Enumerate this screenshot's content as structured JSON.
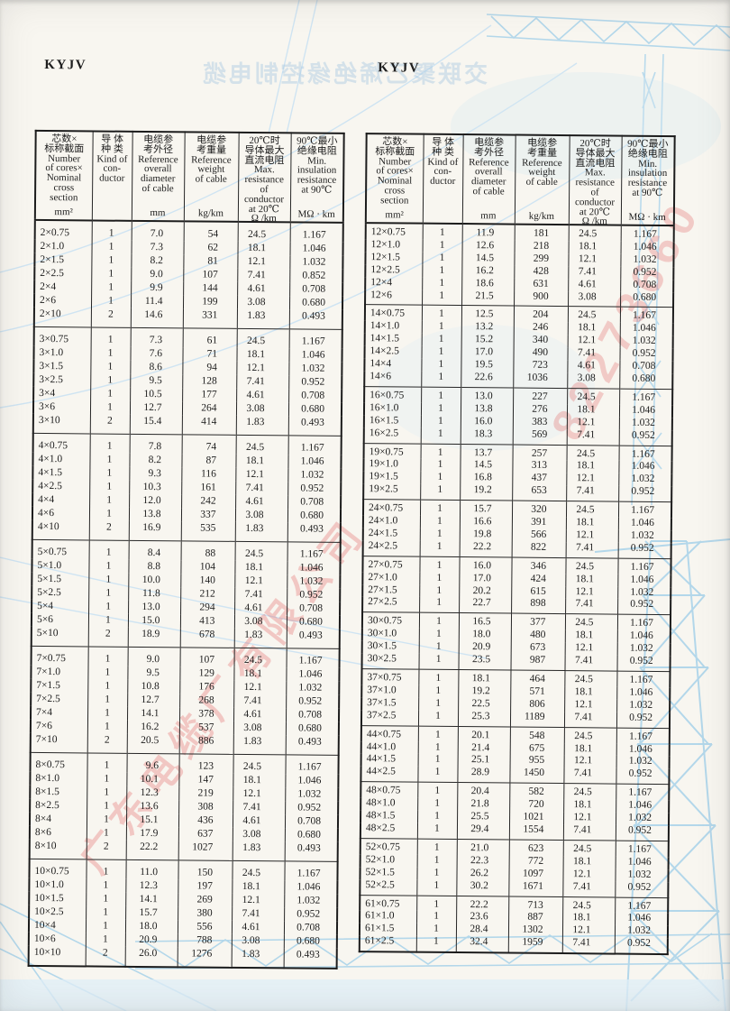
{
  "titles": {
    "left": "KYJV",
    "right": "KYJV"
  },
  "decor": {
    "ghost_title": "交联聚乙烯绝缘控制电缆",
    "watermark_company": "广东电缆厂有限公司",
    "watermark_phone": "82273660",
    "colors": {
      "pylon_blue": "#b3d7ea",
      "watermark_red": "#e05050",
      "paper": "#f8f6f0"
    }
  },
  "header": {
    "cols": [
      {
        "text": "芯数×\n标称截面\nNumber\nof cores×\nNominal\ncross\nsection",
        "unit": "mm²"
      },
      {
        "text": "导 体\n种 类\nKind of\ncon-\nductor",
        "unit": ""
      },
      {
        "text": "电缆参\n考外径\nReference\noverall\ndiameter\nof cable",
        "unit": "mm"
      },
      {
        "text": "电缆参\n考重量\nReference\nweight\nof cable",
        "unit": "kg/km"
      },
      {
        "text": "20℃时\n导体最大\n直流电阻\nMax.\nresistance\nof\nconductor\nat 20℃",
        "unit": "Ω /km"
      },
      {
        "text": "90℃最小\n绝缘电阻\nMin.\ninsulation\nresistance\nat 90℃",
        "unit": "MΩ · km"
      }
    ]
  },
  "left_table": {
    "groups": [
      {
        "rows": [
          [
            "2×0.75",
            "1",
            "7.0",
            "54",
            "24.5",
            "1.167"
          ],
          [
            "2×1.0",
            "1",
            "7.3",
            "62",
            "18.1",
            "1.046"
          ],
          [
            "2×1.5",
            "1",
            "8.2",
            "81",
            "12.1",
            "1.032"
          ],
          [
            "2×2.5",
            "1",
            "9.0",
            "107",
            "7.41",
            "0.852"
          ],
          [
            "2×4",
            "1",
            "9.9",
            "144",
            "4.61",
            "0.708"
          ],
          [
            "2×6",
            "1",
            "11.4",
            "199",
            "3.08",
            "0.680"
          ],
          [
            "2×10",
            "2",
            "14.6",
            "331",
            "1.83",
            "0.493"
          ]
        ]
      },
      {
        "rows": [
          [
            "3×0.75",
            "1",
            "7.3",
            "61",
            "24.5",
            "1.167"
          ],
          [
            "3×1.0",
            "1",
            "7.6",
            "71",
            "18.1",
            "1.046"
          ],
          [
            "3×1.5",
            "1",
            "8.6",
            "94",
            "12.1",
            "1.032"
          ],
          [
            "3×2.5",
            "1",
            "9.5",
            "128",
            "7.41",
            "0.952"
          ],
          [
            "3×4",
            "1",
            "10.5",
            "177",
            "4.61",
            "0.708"
          ],
          [
            "3×6",
            "1",
            "12.7",
            "264",
            "3.08",
            "0.680"
          ],
          [
            "3×10",
            "2",
            "15.4",
            "414",
            "1.83",
            "0.493"
          ]
        ]
      },
      {
        "rows": [
          [
            "4×0.75",
            "1",
            "7.8",
            "74",
            "24.5",
            "1.167"
          ],
          [
            "4×1.0",
            "1",
            "8.2",
            "87",
            "18.1",
            "1.046"
          ],
          [
            "4×1.5",
            "1",
            "9.3",
            "116",
            "12.1",
            "1.032"
          ],
          [
            "4×2.5",
            "1",
            "10.3",
            "161",
            "7.41",
            "0.952"
          ],
          [
            "4×4",
            "1",
            "12.0",
            "242",
            "4.61",
            "0.708"
          ],
          [
            "4×6",
            "1",
            "13.8",
            "337",
            "3.08",
            "0.680"
          ],
          [
            "4×10",
            "2",
            "16.9",
            "535",
            "1.83",
            "0.493"
          ]
        ]
      },
      {
        "rows": [
          [
            "5×0.75",
            "1",
            "8.4",
            "88",
            "24.5",
            "1.167"
          ],
          [
            "5×1.0",
            "1",
            "8.8",
            "104",
            "18.1",
            "1.046"
          ],
          [
            "5×1.5",
            "1",
            "10.0",
            "140",
            "12.1",
            "1.032"
          ],
          [
            "5×2.5",
            "1",
            "11.8",
            "212",
            "7.41",
            "0.952"
          ],
          [
            "5×4",
            "1",
            "13.0",
            "294",
            "4.61",
            "0.708"
          ],
          [
            "5×6",
            "1",
            "15.0",
            "413",
            "3.08",
            "0.680"
          ],
          [
            "5×10",
            "2",
            "18.9",
            "678",
            "1.83",
            "0.493"
          ]
        ]
      },
      {
        "rows": [
          [
            "7×0.75",
            "1",
            "9.0",
            "107",
            "24.5",
            "1.167"
          ],
          [
            "7×1.0",
            "1",
            "9.5",
            "129",
            "18.1",
            "1.046"
          ],
          [
            "7×1.5",
            "1",
            "10.8",
            "176",
            "12.1",
            "1.032"
          ],
          [
            "7×2.5",
            "1",
            "12.7",
            "268",
            "7.41",
            "0.952"
          ],
          [
            "7×4",
            "1",
            "14.1",
            "378",
            "4.61",
            "0.708"
          ],
          [
            "7×6",
            "1",
            "16.2",
            "537",
            "3.08",
            "0.680"
          ],
          [
            "7×10",
            "2",
            "20.5",
            "886",
            "1.83",
            "0.493"
          ]
        ]
      },
      {
        "rows": [
          [
            "8×0.75",
            "1",
            "9.6",
            "123",
            "24.5",
            "1.167"
          ],
          [
            "8×1.0",
            "1",
            "10.1",
            "147",
            "18.1",
            "1.046"
          ],
          [
            "8×1.5",
            "1",
            "12.3",
            "219",
            "12.1",
            "1.032"
          ],
          [
            "8×2.5",
            "1",
            "13.6",
            "308",
            "7.41",
            "0.952"
          ],
          [
            "8×4",
            "1",
            "15.1",
            "436",
            "4.61",
            "0.708"
          ],
          [
            "8×6",
            "1",
            "17.9",
            "637",
            "3.08",
            "0.680"
          ],
          [
            "8×10",
            "2",
            "22.2",
            "1027",
            "1.83",
            "0.493"
          ]
        ]
      },
      {
        "rows": [
          [
            "10×0.75",
            "1",
            "11.0",
            "150",
            "24.5",
            "1.167"
          ],
          [
            "10×1.0",
            "1",
            "12.3",
            "197",
            "18.1",
            "1.046"
          ],
          [
            "10×1.5",
            "1",
            "14.1",
            "269",
            "12.1",
            "1.032"
          ],
          [
            "10×2.5",
            "1",
            "15.7",
            "380",
            "7.41",
            "0.952"
          ],
          [
            "10×4",
            "1",
            "18.0",
            "556",
            "4.61",
            "0.708"
          ],
          [
            "10×6",
            "1",
            "20.9",
            "788",
            "3.08",
            "0.680"
          ],
          [
            "10×10",
            "2",
            "26.0",
            "1276",
            "1.83",
            "0.493"
          ]
        ]
      }
    ]
  },
  "right_table": {
    "groups": [
      {
        "rows": [
          [
            "12×0.75",
            "1",
            "11.9",
            "181",
            "24.5",
            "1.167"
          ],
          [
            "12×1.0",
            "1",
            "12.6",
            "218",
            "18.1",
            "1.046"
          ],
          [
            "12×1.5",
            "1",
            "14.5",
            "299",
            "12.1",
            "1.032"
          ],
          [
            "12×2.5",
            "1",
            "16.2",
            "428",
            "7.41",
            "0.952"
          ],
          [
            "12×4",
            "1",
            "18.6",
            "631",
            "4.61",
            "0.708"
          ],
          [
            "12×6",
            "1",
            "21.5",
            "900",
            "3.08",
            "0.680"
          ]
        ]
      },
      {
        "rows": [
          [
            "14×0.75",
            "1",
            "12.5",
            "204",
            "24.5",
            "1.167"
          ],
          [
            "14×1.0",
            "1",
            "13.2",
            "246",
            "18.1",
            "1.046"
          ],
          [
            "14×1.5",
            "1",
            "15.2",
            "340",
            "12.1",
            "1.032"
          ],
          [
            "14×2.5",
            "1",
            "17.0",
            "490",
            "7.41",
            "0.952"
          ],
          [
            "14×4",
            "1",
            "19.5",
            "723",
            "4.61",
            "0.708"
          ],
          [
            "14×6",
            "1",
            "22.6",
            "1036",
            "3.08",
            "0.680"
          ]
        ]
      },
      {
        "rows": [
          [
            "16×0.75",
            "1",
            "13.0",
            "227",
            "24.5",
            "1.167"
          ],
          [
            "16×1.0",
            "1",
            "13.8",
            "276",
            "18.1",
            "1.046"
          ],
          [
            "16×1.5",
            "1",
            "16.0",
            "383",
            "12.1",
            "1.032"
          ],
          [
            "16×2.5",
            "1",
            "18.3",
            "569",
            "7.41",
            "0.952"
          ]
        ]
      },
      {
        "rows": [
          [
            "19×0.75",
            "1",
            "13.7",
            "257",
            "24.5",
            "1.167"
          ],
          [
            "19×1.0",
            "1",
            "14.5",
            "313",
            "18.1",
            "1.046"
          ],
          [
            "19×1.5",
            "1",
            "16.8",
            "437",
            "12.1",
            "1.032"
          ],
          [
            "19×2.5",
            "1",
            "19.2",
            "653",
            "7.41",
            "0.952"
          ]
        ]
      },
      {
        "rows": [
          [
            "24×0.75",
            "1",
            "15.7",
            "320",
            "24.5",
            "1.167"
          ],
          [
            "24×1.0",
            "1",
            "16.6",
            "391",
            "18.1",
            "1.046"
          ],
          [
            "24×1.5",
            "1",
            "19.8",
            "566",
            "12.1",
            "1.032"
          ],
          [
            "24×2.5",
            "1",
            "22.2",
            "822",
            "7.41",
            "0.952"
          ]
        ]
      },
      {
        "rows": [
          [
            "27×0.75",
            "1",
            "16.0",
            "346",
            "24.5",
            "1.167"
          ],
          [
            "27×1.0",
            "1",
            "17.0",
            "424",
            "18.1",
            "1.046"
          ],
          [
            "27×1.5",
            "1",
            "20.2",
            "615",
            "12.1",
            "1.032"
          ],
          [
            "27×2.5",
            "1",
            "22.7",
            "898",
            "7.41",
            "0.952"
          ]
        ]
      },
      {
        "rows": [
          [
            "30×0.75",
            "1",
            "16.5",
            "377",
            "24.5",
            "1.167"
          ],
          [
            "30×1.0",
            "1",
            "18.0",
            "480",
            "18.1",
            "1.046"
          ],
          [
            "30×1.5",
            "1",
            "20.9",
            "673",
            "12.1",
            "1.032"
          ],
          [
            "30×2.5",
            "1",
            "23.5",
            "987",
            "7.41",
            "0.952"
          ]
        ]
      },
      {
        "rows": [
          [
            "37×0.75",
            "1",
            "18.1",
            "464",
            "24.5",
            "1.167"
          ],
          [
            "37×1.0",
            "1",
            "19.2",
            "571",
            "18.1",
            "1.046"
          ],
          [
            "37×1.5",
            "1",
            "22.5",
            "806",
            "12.1",
            "1.032"
          ],
          [
            "37×2.5",
            "1",
            "25.3",
            "1189",
            "7.41",
            "0.952"
          ]
        ]
      },
      {
        "rows": [
          [
            "44×0.75",
            "1",
            "20.1",
            "548",
            "24.5",
            "1.167"
          ],
          [
            "44×1.0",
            "1",
            "21.4",
            "675",
            "18.1",
            "1.046"
          ],
          [
            "44×1.5",
            "1",
            "25.1",
            "955",
            "12.1",
            "1.032"
          ],
          [
            "44×2.5",
            "1",
            "28.9",
            "1450",
            "7.41",
            "0.952"
          ]
        ]
      },
      {
        "rows": [
          [
            "48×0.75",
            "1",
            "20.4",
            "582",
            "24.5",
            "1.167"
          ],
          [
            "48×1.0",
            "1",
            "21.8",
            "720",
            "18.1",
            "1.046"
          ],
          [
            "48×1.5",
            "1",
            "25.5",
            "1021",
            "12.1",
            "1.032"
          ],
          [
            "48×2.5",
            "1",
            "29.4",
            "1554",
            "7.41",
            "0.952"
          ]
        ]
      },
      {
        "rows": [
          [
            "52×0.75",
            "1",
            "21.0",
            "623",
            "24.5",
            "1.167"
          ],
          [
            "52×1.0",
            "1",
            "22.3",
            "772",
            "18.1",
            "1.046"
          ],
          [
            "52×1.5",
            "1",
            "26.2",
            "1097",
            "12.1",
            "1.032"
          ],
          [
            "52×2.5",
            "1",
            "30.2",
            "1671",
            "7.41",
            "0.952"
          ]
        ]
      },
      {
        "rows": [
          [
            "61×0.75",
            "1",
            "22.2",
            "713",
            "24.5",
            "1.167"
          ],
          [
            "61×1.0",
            "1",
            "23.6",
            "887",
            "18.1",
            "1.046"
          ],
          [
            "61×1.5",
            "1",
            "28.4",
            "1302",
            "12.1",
            "1.032"
          ],
          [
            "61×2.5",
            "1",
            "32.4",
            "1959",
            "7.41",
            "0.952"
          ]
        ]
      }
    ]
  }
}
